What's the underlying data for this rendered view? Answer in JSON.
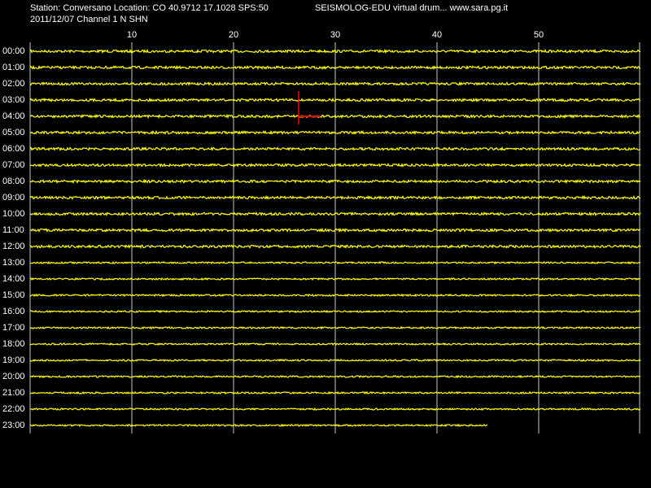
{
  "chart_data": {
    "type": "drum",
    "title": "Station: Conversano Location: CO 40.9712 17.1028 SPS:50",
    "subtitle": "2011/12/07  Channel 1 N SHN",
    "annotation": "SEISMOLOG-EDU virtual drum... www.sara.pg.it",
    "categories": [
      "00:00",
      "01:00",
      "02:00",
      "03:00",
      "04:00",
      "05:00",
      "06:00",
      "07:00",
      "08:00",
      "09:00",
      "10:00",
      "11:00",
      "12:00",
      "13:00",
      "14:00",
      "15:00",
      "16:00",
      "17:00",
      "18:00",
      "19:00",
      "20:00",
      "21:00",
      "22:00",
      "23:00"
    ],
    "values": [
      60,
      60,
      60,
      60,
      60,
      60,
      60,
      60,
      60,
      60,
      60,
      60,
      60,
      60,
      60,
      60,
      60,
      60,
      60,
      60,
      60,
      60,
      60,
      45
    ],
    "color": "#ffff00",
    "xlim": [
      0,
      60
    ],
    "xticks": [
      10,
      20,
      30,
      40,
      50
    ],
    "event": {
      "category": "04:00",
      "x": [
        26.4,
        28.5
      ],
      "color": "#ff0000"
    },
    "grid": true
  }
}
